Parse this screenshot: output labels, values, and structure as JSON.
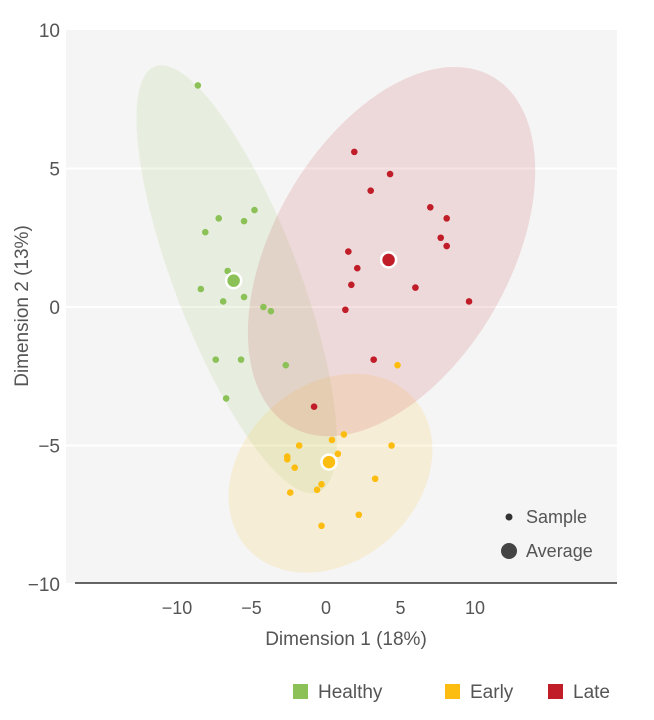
{
  "chart_data": {
    "type": "scatter",
    "xlabel": "Dimension 1 (18%)",
    "ylabel": "Dimension 2 (13%)",
    "xlim": [
      -17.4,
      19.5
    ],
    "ylim": [
      -10,
      10
    ],
    "xticks": [
      -10,
      -5,
      0,
      5,
      10
    ],
    "yticks": [
      10,
      5,
      0,
      -5,
      -10
    ],
    "grid": "horizontal",
    "series": [
      {
        "name": "Healthy",
        "color": "#8bc157",
        "points": [
          [
            -8.6,
            8.0
          ],
          [
            -7.2,
            3.2
          ],
          [
            -5.5,
            3.1
          ],
          [
            -4.8,
            3.5
          ],
          [
            -8.1,
            2.7
          ],
          [
            -6.6,
            1.3
          ],
          [
            -8.4,
            0.65
          ],
          [
            -6.9,
            0.2
          ],
          [
            -5.5,
            0.36
          ],
          [
            -4.2,
            0.0
          ],
          [
            -3.7,
            -0.15
          ],
          [
            -7.4,
            -1.9
          ],
          [
            -5.7,
            -1.9
          ],
          [
            -2.7,
            -2.1
          ],
          [
            -6.7,
            -3.3
          ]
        ],
        "average": [
          -6.2,
          0.95
        ],
        "ellipse_center": [
          -6.0,
          1.0
        ]
      },
      {
        "name": "Early",
        "color": "#fdbd10",
        "points": [
          [
            4.8,
            -2.1
          ],
          [
            1.2,
            -4.6
          ],
          [
            0.4,
            -4.8
          ],
          [
            -1.8,
            -5.0
          ],
          [
            4.4,
            -5.0
          ],
          [
            0.8,
            -5.3
          ],
          [
            -2.6,
            -5.4
          ],
          [
            -2.6,
            -5.5
          ],
          [
            -2.1,
            -5.8
          ],
          [
            3.3,
            -6.2
          ],
          [
            -0.3,
            -6.4
          ],
          [
            -0.6,
            -6.6
          ],
          [
            -2.4,
            -6.7
          ],
          [
            2.2,
            -7.5
          ],
          [
            -0.3,
            -7.9
          ]
        ],
        "average": [
          0.2,
          -5.6
        ],
        "ellipse_center": [
          0.3,
          -6.0
        ]
      },
      {
        "name": "Late",
        "color": "#c01d28",
        "points": [
          [
            1.9,
            5.6
          ],
          [
            4.3,
            4.8
          ],
          [
            3.0,
            4.2
          ],
          [
            7.0,
            3.6
          ],
          [
            8.1,
            3.2
          ],
          [
            7.7,
            2.5
          ],
          [
            8.1,
            2.2
          ],
          [
            1.5,
            2.0
          ],
          [
            2.1,
            1.4
          ],
          [
            1.7,
            0.8
          ],
          [
            6.0,
            0.7
          ],
          [
            9.6,
            0.2
          ],
          [
            1.3,
            -0.1
          ],
          [
            3.2,
            -1.9
          ],
          [
            -0.8,
            -3.6
          ]
        ],
        "average": [
          4.2,
          1.7
        ],
        "ellipse_center": [
          4.4,
          2.0
        ]
      }
    ],
    "size_legend": {
      "sample": "Sample",
      "average": "Average",
      "placement": "bottom-right"
    },
    "legend_placement": "bottom"
  }
}
